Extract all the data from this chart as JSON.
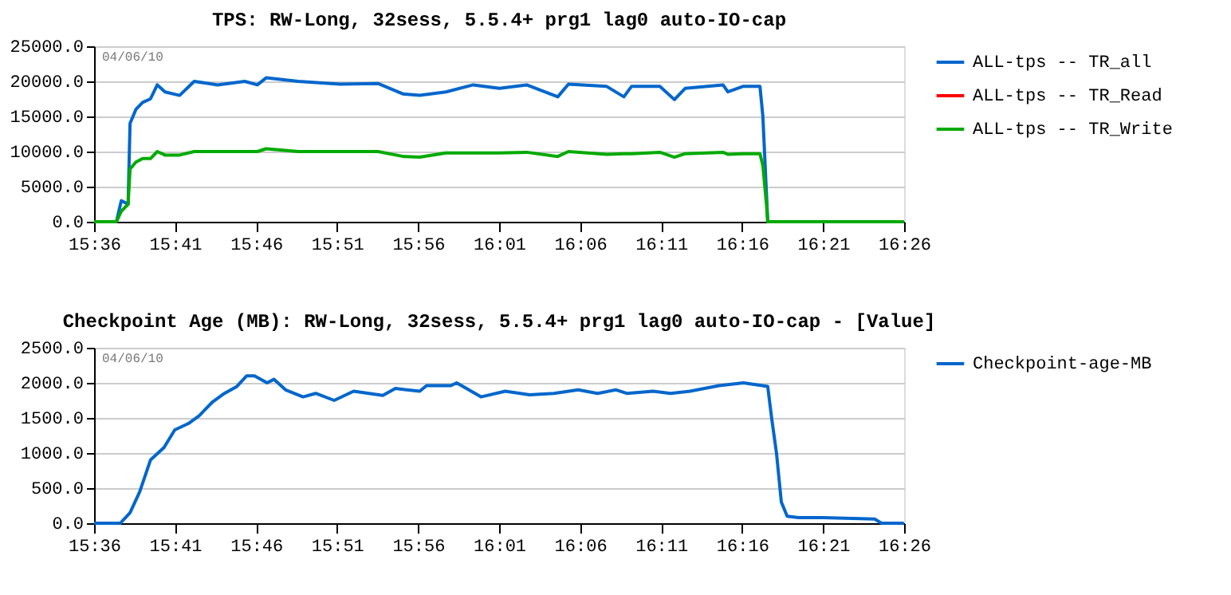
{
  "chart_data": [
    {
      "type": "line",
      "title": "TPS: RW-Long, 32sess, 5.5.4+ prg1 lag0 auto-IO-cap",
      "annotations": [
        "04/06/10"
      ],
      "x": [
        15.6,
        15.623,
        15.628,
        15.635,
        15.637,
        15.643,
        15.65,
        15.658,
        15.665,
        15.673,
        15.688,
        15.703,
        15.727,
        15.755,
        15.768,
        15.777,
        15.81,
        15.853,
        15.892,
        15.918,
        15.935,
        15.962,
        15.99,
        16.017,
        16.045,
        16.077,
        16.088,
        16.127,
        16.145,
        16.153,
        16.182,
        16.197,
        16.208,
        16.247,
        16.252,
        16.268,
        16.285,
        16.288,
        16.292,
        16.293,
        16.433
      ],
      "series": [
        {
          "name": "ALL-tps -- TR_all",
          "color": "#0066cc",
          "values": [
            0,
            0,
            3000,
            2500,
            14000,
            16000,
            17000,
            17500,
            19500,
            18500,
            18000,
            20000,
            19500,
            20000,
            19500,
            20500,
            20000,
            19600,
            19700,
            18200,
            18000,
            18500,
            19500,
            19000,
            19500,
            17800,
            19600,
            19300,
            17800,
            19300,
            19300,
            17400,
            19000,
            19500,
            18500,
            19300,
            19300,
            15000,
            3000,
            0,
            0
          ]
        },
        {
          "name": "ALL-tps -- TR_Read",
          "color": "#ff0000",
          "values": [
            null,
            null,
            null,
            null,
            null,
            null,
            null,
            null,
            null,
            null,
            null,
            null,
            null,
            null,
            null,
            null,
            null,
            null,
            null,
            null,
            null,
            null,
            null,
            null,
            null,
            null,
            null,
            null,
            null,
            null,
            null,
            null,
            null,
            null,
            null,
            null,
            null,
            null,
            null,
            null,
            null
          ]
        },
        {
          "name": "ALL-tps -- TR_Write",
          "color": "#00aa00",
          "values": [
            0,
            0,
            1500,
            2500,
            7500,
            8500,
            9000,
            9000,
            10000,
            9500,
            9500,
            10000,
            10000,
            10000,
            10000,
            10400,
            10000,
            10000,
            10000,
            9300,
            9200,
            9800,
            9800,
            9800,
            9900,
            9300,
            10000,
            9600,
            9700,
            9700,
            9900,
            9200,
            9700,
            9900,
            9600,
            9700,
            9700,
            8000,
            2000,
            0,
            0
          ]
        }
      ],
      "xlim": [
        15.6,
        16.4333
      ],
      "xticks": [
        {
          "value": 15.6,
          "label": "15:36"
        },
        {
          "value": 15.6833,
          "label": "15:41"
        },
        {
          "value": 15.7667,
          "label": "15:46"
        },
        {
          "value": 15.85,
          "label": "15:51"
        },
        {
          "value": 15.9333,
          "label": "15:56"
        },
        {
          "value": 16.0167,
          "label": "16:01"
        },
        {
          "value": 16.1,
          "label": "16:06"
        },
        {
          "value": 16.1833,
          "label": "16:11"
        },
        {
          "value": 16.2667,
          "label": "16:16"
        },
        {
          "value": 16.35,
          "label": "16:21"
        },
        {
          "value": 16.4333,
          "label": "16:26"
        }
      ],
      "ylim": [
        0,
        25000
      ],
      "yticks": [
        {
          "value": 0,
          "label": "0.0"
        },
        {
          "value": 5000,
          "label": "5000.0"
        },
        {
          "value": 10000,
          "label": "10000.0"
        },
        {
          "value": 15000,
          "label": "15000.0"
        },
        {
          "value": 20000,
          "label": "20000.0"
        },
        {
          "value": 25000,
          "label": "25000.0"
        }
      ],
      "grid": "y",
      "legend": "top right",
      "marker": "none",
      "line_style": "solid"
    },
    {
      "type": "line",
      "title": "Checkpoint Age (MB): RW-Long, 32sess, 5.5.4+ prg1 lag0 auto-IO-cap - [Value]",
      "annotations": [
        "04/06/10"
      ],
      "x": [
        15.6,
        15.627,
        15.637,
        15.647,
        15.658,
        15.672,
        15.683,
        15.697,
        15.708,
        15.722,
        15.733,
        15.747,
        15.757,
        15.765,
        15.778,
        15.785,
        15.797,
        15.815,
        15.828,
        15.847,
        15.867,
        15.897,
        15.91,
        15.935,
        15.942,
        15.967,
        15.973,
        15.998,
        16.023,
        16.048,
        16.073,
        16.098,
        16.118,
        16.137,
        16.148,
        16.175,
        16.193,
        16.213,
        16.243,
        16.268,
        16.293,
        16.297,
        16.302,
        16.307,
        16.313,
        16.325,
        16.35,
        16.403,
        16.41,
        16.433
      ],
      "series": [
        {
          "name": "Checkpoint-age-MB",
          "color": "#0066cc",
          "values": [
            0,
            0,
            150,
            450,
            900,
            1080,
            1330,
            1420,
            1530,
            1730,
            1840,
            1950,
            2100,
            2100,
            2000,
            2050,
            1900,
            1800,
            1850,
            1750,
            1880,
            1820,
            1920,
            1880,
            1960,
            1960,
            2000,
            1800,
            1880,
            1830,
            1850,
            1900,
            1850,
            1900,
            1850,
            1880,
            1850,
            1880,
            1960,
            2000,
            1950,
            1500,
            1000,
            300,
            100,
            80,
            80,
            60,
            0,
            0
          ]
        }
      ],
      "xlim": [
        15.6,
        16.4333
      ],
      "xticks": [
        {
          "value": 15.6,
          "label": "15:36"
        },
        {
          "value": 15.6833,
          "label": "15:41"
        },
        {
          "value": 15.7667,
          "label": "15:46"
        },
        {
          "value": 15.85,
          "label": "15:51"
        },
        {
          "value": 15.9333,
          "label": "15:56"
        },
        {
          "value": 16.0167,
          "label": "16:01"
        },
        {
          "value": 16.1,
          "label": "16:06"
        },
        {
          "value": 16.1833,
          "label": "16:11"
        },
        {
          "value": 16.2667,
          "label": "16:16"
        },
        {
          "value": 16.35,
          "label": "16:21"
        },
        {
          "value": 16.4333,
          "label": "16:26"
        }
      ],
      "ylim": [
        0,
        2500
      ],
      "yticks": [
        {
          "value": 0,
          "label": "0.0"
        },
        {
          "value": 500,
          "label": "500.0"
        },
        {
          "value": 1000,
          "label": "1000.0"
        },
        {
          "value": 1500,
          "label": "1500.0"
        },
        {
          "value": 2000,
          "label": "2000.0"
        },
        {
          "value": 2500,
          "label": "2500.0"
        }
      ],
      "grid": "y",
      "legend": "top right",
      "marker": "none",
      "line_style": "solid"
    }
  ]
}
